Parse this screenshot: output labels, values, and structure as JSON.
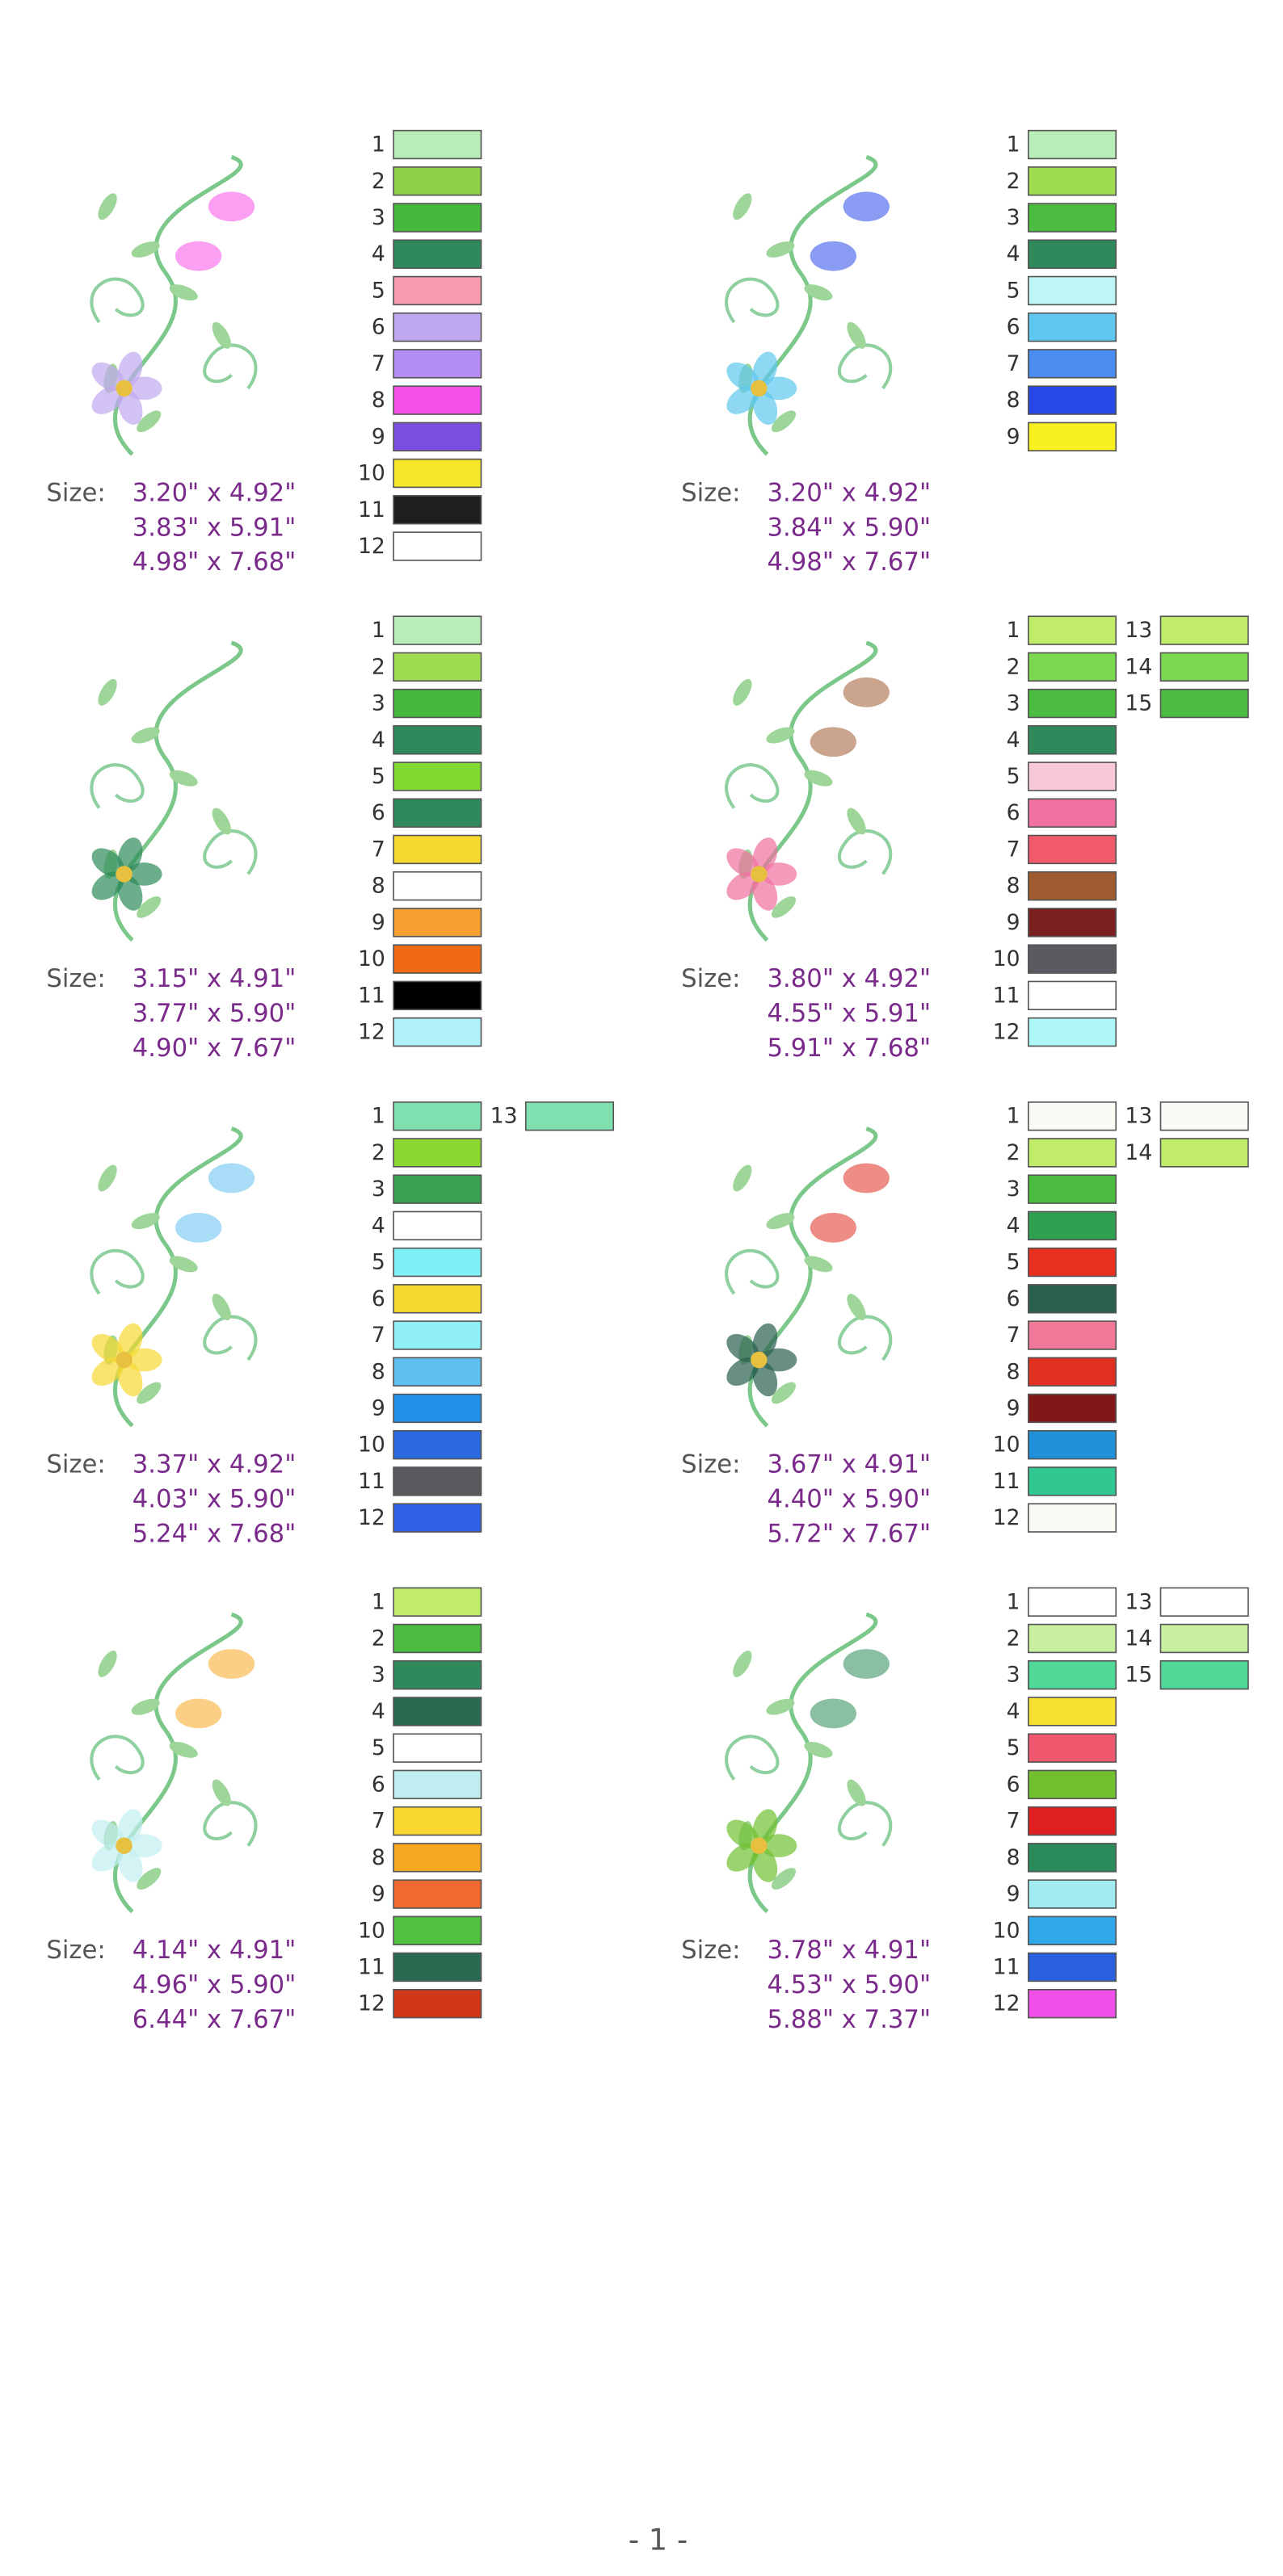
{
  "designs": [
    {
      "size_label": "Size:",
      "sizes": [
        "3.20\" x 4.92\"",
        "3.83\" x 5.91\"",
        "4.98\" x 7.68\""
      ],
      "colors": [
        {
          "number": 1,
          "color": "#b8ecb8"
        },
        {
          "number": 2,
          "color": "#8fd24a"
        },
        {
          "number": 3,
          "color": "#46b83c"
        },
        {
          "number": 4,
          "color": "#2e8a5a"
        },
        {
          "number": 5,
          "color": "#f59ab0"
        },
        {
          "number": 6,
          "color": "#c0a8f0"
        },
        {
          "number": 7,
          "color": "#b48cf5"
        },
        {
          "number": 8,
          "color": "#f550e8"
        },
        {
          "number": 9,
          "color": "#7a4ee0"
        },
        {
          "number": 10,
          "color": "#f5e62a"
        },
        {
          "number": 11,
          "color": "#1e1e1e"
        },
        {
          "number": 12,
          "color": "#ffffff"
        }
      ]
    },
    {
      "size_label": "Size:",
      "sizes": [
        "3.20\" x 4.92\"",
        "3.84\" x 5.90\"",
        "4.98\" x 7.67\""
      ],
      "colors": [
        {
          "number": 1,
          "color": "#b8ecb8"
        },
        {
          "number": 2,
          "color": "#a0dc50"
        },
        {
          "number": 3,
          "color": "#4cbc40"
        },
        {
          "number": 4,
          "color": "#2e8a5a"
        },
        {
          "number": 5,
          "color": "#c0f5f8"
        },
        {
          "number": 6,
          "color": "#60c8f0"
        },
        {
          "number": 7,
          "color": "#4a8cf0"
        },
        {
          "number": 8,
          "color": "#2848e8"
        },
        {
          "number": 9,
          "color": "#f8f020"
        }
      ]
    },
    {
      "size_label": "Size:",
      "sizes": [
        "3.15\" x 4.91\"",
        "3.77\" x 5.90\"",
        "4.90\" x 7.67\""
      ],
      "colors": [
        {
          "number": 1,
          "color": "#b8ecb8"
        },
        {
          "number": 2,
          "color": "#a0dc50"
        },
        {
          "number": 3,
          "color": "#46b83c"
        },
        {
          "number": 4,
          "color": "#2e8a5a"
        },
        {
          "number": 5,
          "color": "#80d830"
        },
        {
          "number": 6,
          "color": "#2e8a5a"
        },
        {
          "number": 7,
          "color": "#f5d830"
        },
        {
          "number": 8,
          "color": "#ffffff"
        },
        {
          "number": 9,
          "color": "#f5a030"
        },
        {
          "number": 10,
          "color": "#f06a14"
        },
        {
          "number": 11,
          "color": "#000000"
        },
        {
          "number": 12,
          "color": "#b0f0f8"
        }
      ]
    },
    {
      "size_label": "Size:",
      "sizes": [
        "3.80\" x 4.92\"",
        "4.55\" x 5.91\"",
        "5.91\" x 7.68\""
      ],
      "colors": [
        {
          "number": 1,
          "color": "#c0ec6a"
        },
        {
          "number": 2,
          "color": "#7cd850"
        },
        {
          "number": 3,
          "color": "#4cbc40"
        },
        {
          "number": 4,
          "color": "#2e8a5a"
        },
        {
          "number": 5,
          "color": "#f8c8d8"
        },
        {
          "number": 6,
          "color": "#f070a0"
        },
        {
          "number": 7,
          "color": "#f05a6a"
        },
        {
          "number": 8,
          "color": "#a05a30"
        },
        {
          "number": 9,
          "color": "#7a2020"
        },
        {
          "number": 10,
          "color": "#5a5a60"
        },
        {
          "number": 11,
          "color": "#ffffff"
        },
        {
          "number": 12,
          "color": "#b0f8f8"
        },
        {
          "number": 13,
          "color": "#c0ec6a"
        },
        {
          "number": 14,
          "color": "#7cd850"
        },
        {
          "number": 15,
          "color": "#4cbc40"
        }
      ]
    },
    {
      "size_label": "Size:",
      "sizes": [
        "3.37\" x 4.92\"",
        "4.03\" x 5.90\"",
        "5.24\" x 7.68\""
      ],
      "colors": [
        {
          "number": 1,
          "color": "#80e0b0"
        },
        {
          "number": 2,
          "color": "#8cd830"
        },
        {
          "number": 3,
          "color": "#3aa050"
        },
        {
          "number": 4,
          "color": "#ffffff"
        },
        {
          "number": 5,
          "color": "#80f0f8"
        },
        {
          "number": 6,
          "color": "#f5d830"
        },
        {
          "number": 7,
          "color": "#90eef8"
        },
        {
          "number": 8,
          "color": "#60c0f0"
        },
        {
          "number": 9,
          "color": "#2090e8"
        },
        {
          "number": 10,
          "color": "#2a68e0"
        },
        {
          "number": 11,
          "color": "#5a5a60"
        },
        {
          "number": 12,
          "color": "#3060e8"
        },
        {
          "number": 13,
          "color": "#80e0b0"
        }
      ]
    },
    {
      "size_label": "Size:",
      "sizes": [
        "3.67\" x 4.91\"",
        "4.40\" x 5.90\"",
        "5.72\" x 7.67\""
      ],
      "colors": [
        {
          "number": 1,
          "color": "#fbfaf5"
        },
        {
          "number": 2,
          "color": "#c0ec6a"
        },
        {
          "number": 3,
          "color": "#4cbc40"
        },
        {
          "number": 4,
          "color": "#30a050"
        },
        {
          "number": 5,
          "color": "#e83020"
        },
        {
          "number": 6,
          "color": "#2a6050"
        },
        {
          "number": 7,
          "color": "#f07898"
        },
        {
          "number": 8,
          "color": "#e03020"
        },
        {
          "number": 9,
          "color": "#801818"
        },
        {
          "number": 10,
          "color": "#2090d8"
        },
        {
          "number": 11,
          "color": "#30c890"
        },
        {
          "number": 12,
          "color": "#fbfaf5"
        },
        {
          "number": 13,
          "color": "#fbfaf5"
        },
        {
          "number": 14,
          "color": "#c0ec6a"
        }
      ]
    },
    {
      "size_label": "Size:",
      "sizes": [
        "4.14\" x 4.91\"",
        "4.96\" x 5.90\"",
        "6.44\" x 7.67\""
      ],
      "colors": [
        {
          "number": 1,
          "color": "#c0ec6a"
        },
        {
          "number": 2,
          "color": "#4cbc40"
        },
        {
          "number": 3,
          "color": "#2e8a5a"
        },
        {
          "number": 4,
          "color": "#2a6a50"
        },
        {
          "number": 5,
          "color": "#ffffff"
        },
        {
          "number": 6,
          "color": "#c0eef0"
        },
        {
          "number": 7,
          "color": "#f8d830"
        },
        {
          "number": 8,
          "color": "#f8a820"
        },
        {
          "number": 9,
          "color": "#f06a30"
        },
        {
          "number": 10,
          "color": "#50c040"
        },
        {
          "number": 11,
          "color": "#2a6a50"
        },
        {
          "number": 12,
          "color": "#d03818"
        }
      ]
    },
    {
      "size_label": "Size:",
      "sizes": [
        "3.78\" x 4.91\"",
        "4.53\" x 5.90\"",
        "5.88\" x 7.37\""
      ],
      "colors": [
        {
          "number": 1,
          "color": "#ffffff"
        },
        {
          "number": 2,
          "color": "#c8f0a0"
        },
        {
          "number": 3,
          "color": "#50d898"
        },
        {
          "number": 4,
          "color": "#f8e030"
        },
        {
          "number": 5,
          "color": "#f05870"
        },
        {
          "number": 6,
          "color": "#70c030"
        },
        {
          "number": 7,
          "color": "#e02020"
        },
        {
          "number": 8,
          "color": "#2a8a5a"
        },
        {
          "number": 9,
          "color": "#a0ecf0"
        },
        {
          "number": 10,
          "color": "#30a8e8"
        },
        {
          "number": 11,
          "color": "#2860e0"
        },
        {
          "number": 12,
          "color": "#f050e8"
        },
        {
          "number": 13,
          "color": "#ffffff"
        },
        {
          "number": 14,
          "color": "#c8f0a0"
        },
        {
          "number": 15,
          "color": "#50d898"
        }
      ]
    }
  ],
  "footer": "- 1 -"
}
